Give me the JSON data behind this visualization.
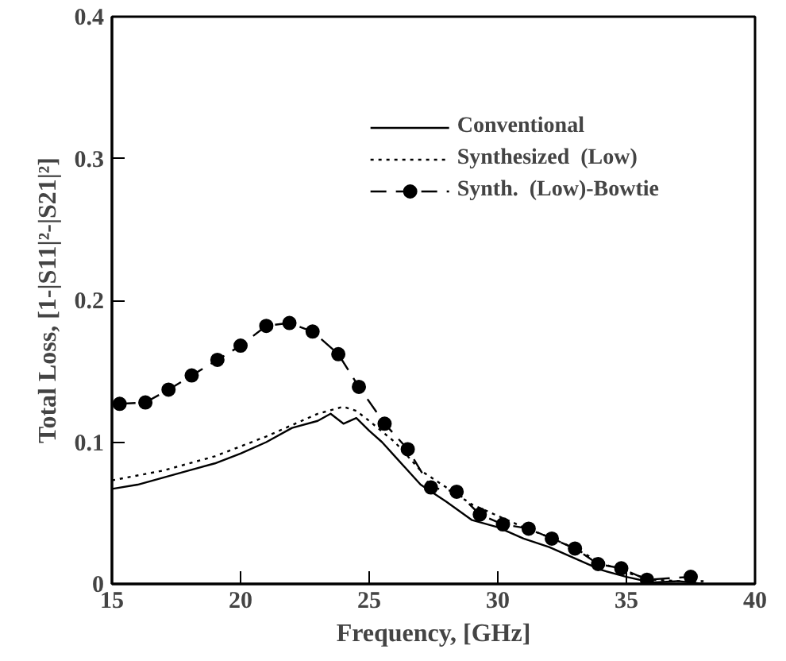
{
  "chart_data": {
    "type": "line",
    "xlabel": "Frequency, [GHz]",
    "ylabel": "Total Loss, [1-|S11|²-|S21|²]",
    "xlim": [
      15,
      40
    ],
    "ylim": [
      0,
      0.4
    ],
    "xticks": [
      15,
      20,
      25,
      30,
      35,
      40
    ],
    "yticks": [
      0,
      0.1,
      0.2,
      0.3,
      0.4
    ],
    "grid": false,
    "legend": "top right",
    "series": [
      {
        "name": "Conventional",
        "color": "#000000",
        "line_style": "solid",
        "marker": "none",
        "x": [
          15,
          16,
          17,
          18,
          19,
          20,
          21,
          22,
          23,
          23.5,
          24,
          24.5,
          25,
          25.5,
          26,
          27,
          28,
          29,
          30,
          31,
          32,
          33,
          34,
          35,
          36,
          37,
          38
        ],
        "values": [
          0.067,
          0.07,
          0.075,
          0.08,
          0.085,
          0.092,
          0.1,
          0.11,
          0.115,
          0.12,
          0.113,
          0.117,
          0.108,
          0.1,
          0.09,
          0.07,
          0.058,
          0.045,
          0.04,
          0.032,
          0.026,
          0.018,
          0.01,
          0.005,
          0.001,
          0.002,
          0
        ]
      },
      {
        "name": "Synthesized  (Low)",
        "color": "#000000",
        "line_style": "dotted",
        "marker": "none",
        "x": [
          15,
          17,
          19,
          21,
          22,
          23,
          24,
          24.5,
          25,
          26,
          27,
          28,
          29,
          30,
          31,
          32,
          33,
          34,
          35,
          36,
          37,
          38
        ],
        "values": [
          0.073,
          0.08,
          0.09,
          0.104,
          0.112,
          0.12,
          0.125,
          0.122,
          0.115,
          0.1,
          0.08,
          0.068,
          0.056,
          0.048,
          0.04,
          0.033,
          0.025,
          0.015,
          0.008,
          0.003,
          0.002,
          0.002
        ]
      },
      {
        "name": "Synth.  (Low)-Bowtie",
        "color": "#000000",
        "line_style": "dashed",
        "marker": "circle",
        "x": [
          15.3,
          16.3,
          17.2,
          18.1,
          19.1,
          20.0,
          21.0,
          21.9,
          22.8,
          23.8,
          24.6,
          25.6,
          26.5,
          27.4,
          28.4,
          29.3,
          30.2,
          31.2,
          32.1,
          33.0,
          33.9,
          34.8,
          35.8,
          37.5
        ],
        "values": [
          0.127,
          0.128,
          0.137,
          0.147,
          0.158,
          0.168,
          0.182,
          0.184,
          0.178,
          0.162,
          0.139,
          0.113,
          0.095,
          0.068,
          0.065,
          0.049,
          0.042,
          0.039,
          0.032,
          0.025,
          0.014,
          0.011,
          0.003,
          0.005
        ]
      }
    ]
  }
}
